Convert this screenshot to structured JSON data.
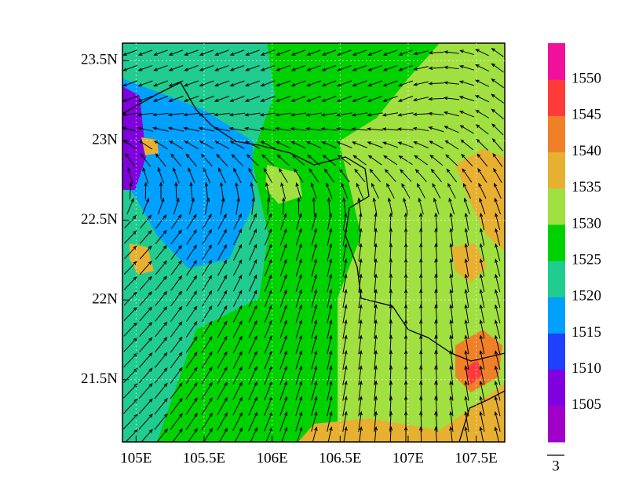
{
  "map": {
    "xlim": [
      104.9,
      107.71
    ],
    "xticks": [
      {
        "value": 105,
        "label": "105E"
      },
      {
        "value": 105.5,
        "label": "105.5E"
      },
      {
        "value": 106,
        "label": "106E"
      },
      {
        "value": 106.5,
        "label": "106.5E"
      },
      {
        "value": 107,
        "label": "107E"
      },
      {
        "value": 107.5,
        "label": "107.5E"
      }
    ],
    "ylim": [
      21.11,
      23.61
    ],
    "yticks": [
      {
        "value": 21.5,
        "label": "21.5N"
      },
      {
        "value": 22,
        "label": "22N"
      },
      {
        "value": 22.5,
        "label": "22.5N"
      },
      {
        "value": 23,
        "label": "23N"
      },
      {
        "value": 23.5,
        "label": "23.5N"
      }
    ],
    "grid": true,
    "colorbar": {
      "levels": [
        1505,
        1510,
        1515,
        1520,
        1525,
        1530,
        1535,
        1540,
        1545,
        1550
      ],
      "colors": [
        "#a000c8",
        "#8000e0",
        "#2040ff",
        "#00a0ff",
        "#20cc90",
        "#00d200",
        "#a0e040",
        "#e8b030",
        "#f08028",
        "#ff3a3a",
        "#f0109c"
      ]
    },
    "vector_reference": "3"
  }
}
